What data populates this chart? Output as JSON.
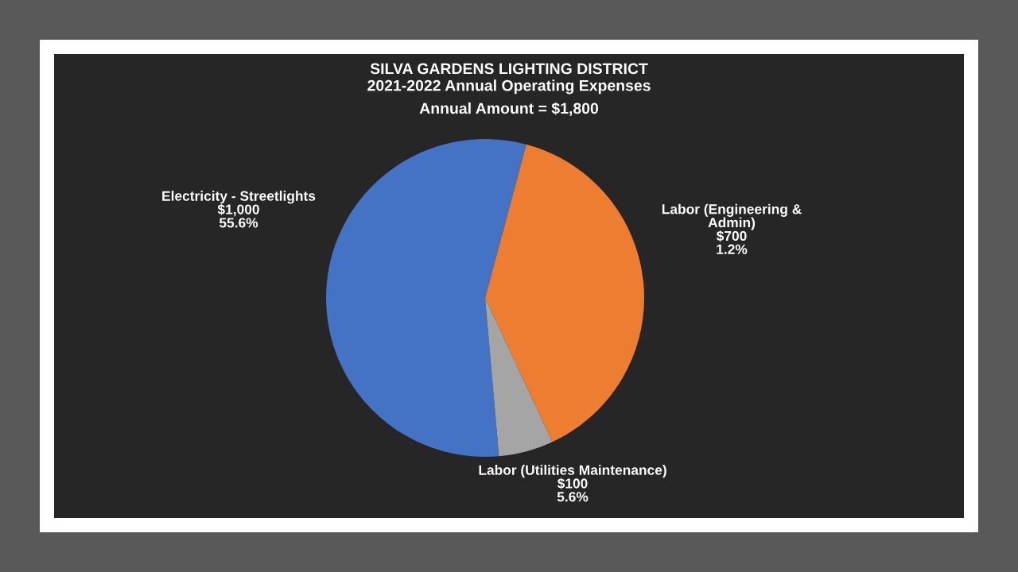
{
  "chart_data": {
    "type": "pie",
    "title": "SILVA GARDENS LIGHTING DISTRICT\n2021-2022 Annual Operating Expenses",
    "subtitle": "Annual Amount = $1,800",
    "categories": [
      "Electricity - Streetlights",
      "Labor (Engineering &\nAdmin)",
      "Labor (Utilities Maintenance)"
    ],
    "values": [
      1000,
      700,
      100
    ],
    "colors": [
      "#4472c4",
      "#ed7d31",
      "#a5a5a5"
    ],
    "value_labels": [
      "$1,000\n55.6%",
      "$700\n1.2%",
      "$100\n5.6%"
    ]
  }
}
